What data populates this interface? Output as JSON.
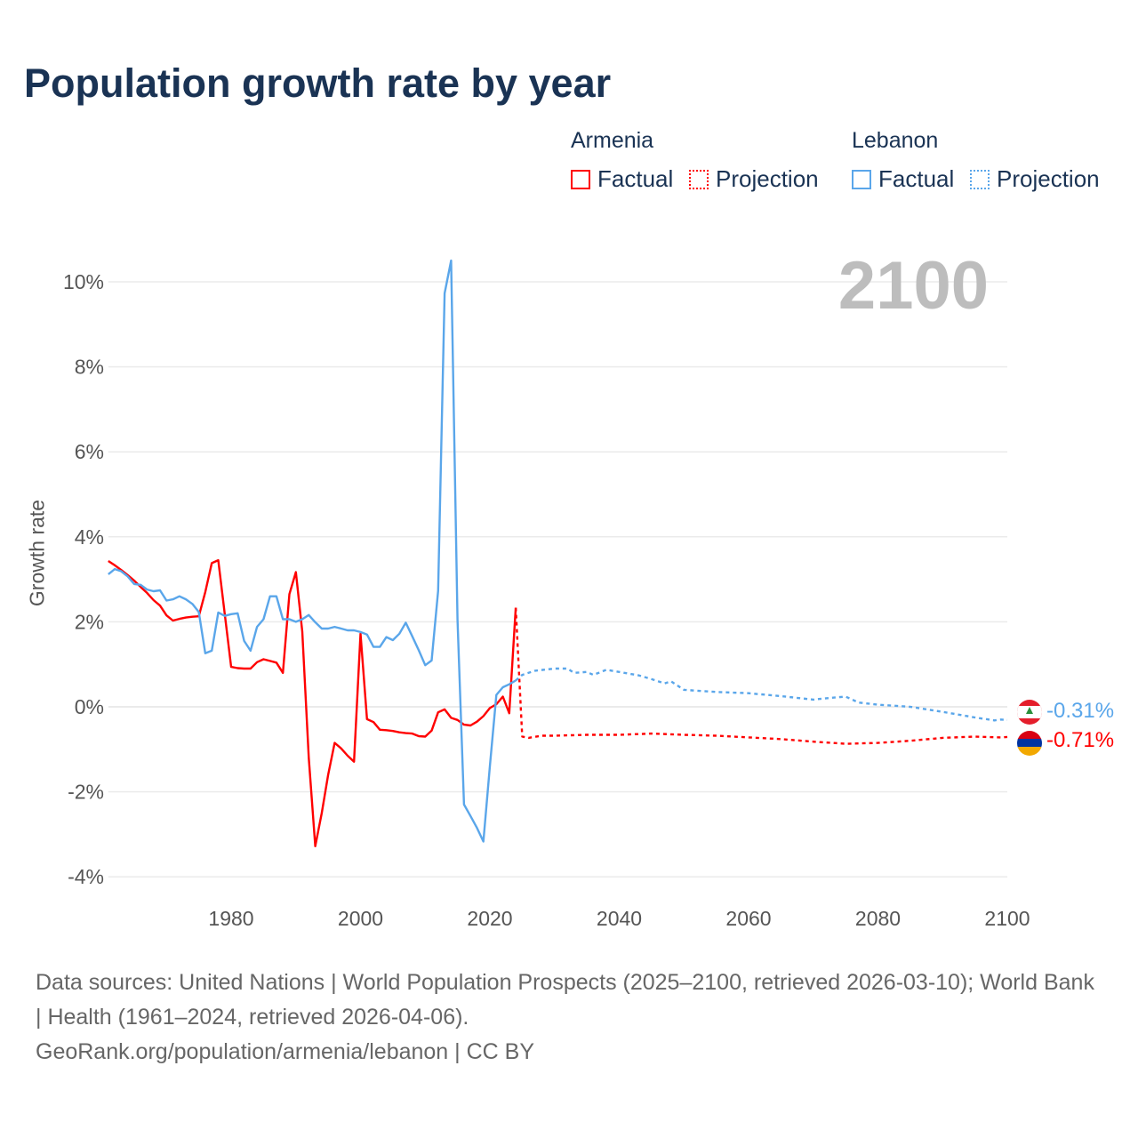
{
  "title": "Population growth rate by year",
  "current_year": "2100",
  "legend": {
    "groups": [
      {
        "name": "Armenia",
        "factual": "Factual",
        "projection": "Projection",
        "color": "#ff0000"
      },
      {
        "name": "Lebanon",
        "factual": "Factual",
        "projection": "Projection",
        "color": "#5aa6ea"
      }
    ]
  },
  "footer": {
    "sources": "Data sources: United Nations | World Population Prospects (2025–2100, retrieved 2026-03-10); World Bank | Health (1961–2024, retrieved 2026-04-06).",
    "credit": "GeoRank.org/population/armenia/lebanon | CC BY"
  },
  "chart_data": {
    "type": "line",
    "title": "Population growth rate by year",
    "xlabel": "",
    "ylabel": "Growth rate",
    "xlim": [
      1961,
      2100
    ],
    "ylim": [
      -4,
      10.8
    ],
    "x_ticks": [
      1980,
      2000,
      2020,
      2040,
      2060,
      2080,
      2100
    ],
    "x_tick_labels": [
      "1980",
      "2000",
      "2020",
      "2040",
      "2060",
      "2080",
      "2100"
    ],
    "y_ticks": [
      -4,
      -2,
      0,
      2,
      4,
      6,
      8,
      10
    ],
    "y_tick_labels": [
      "-4%",
      "-2%",
      "0%",
      "2%",
      "4%",
      "6%",
      "8%",
      "10%"
    ],
    "grid": true,
    "legend_position": "top-right",
    "end_labels": [
      {
        "country": "Lebanon",
        "text": "-0.31%",
        "value": -0.31,
        "color": "#5aa6ea"
      },
      {
        "country": "Armenia",
        "text": "-0.71%",
        "value": -0.71,
        "color": "#ff0000"
      }
    ],
    "series": [
      {
        "name": "Armenia Factual",
        "color": "#ff0000",
        "style": "solid",
        "x": [
          1961,
          1962,
          1963,
          1964,
          1965,
          1966,
          1967,
          1968,
          1969,
          1970,
          1971,
          1972,
          1973,
          1974,
          1975,
          1976,
          1977,
          1978,
          1979,
          1980,
          1981,
          1982,
          1983,
          1984,
          1985,
          1986,
          1987,
          1988,
          1989,
          1990,
          1991,
          1992,
          1993,
          1994,
          1995,
          1996,
          1997,
          1998,
          1999,
          2000,
          2001,
          2002,
          2003,
          2004,
          2005,
          2006,
          2007,
          2008,
          2009,
          2010,
          2011,
          2012,
          2013,
          2014,
          2015,
          2016,
          2017,
          2018,
          2019,
          2020,
          2021,
          2022,
          2023,
          2024
        ],
        "y": [
          3.43,
          3.33,
          3.22,
          3.1,
          2.97,
          2.82,
          2.68,
          2.51,
          2.38,
          2.15,
          2.03,
          2.07,
          2.1,
          2.12,
          2.13,
          2.7,
          3.38,
          3.45,
          2.2,
          0.94,
          0.91,
          0.9,
          0.9,
          1.05,
          1.12,
          1.08,
          1.04,
          0.8,
          2.65,
          3.17,
          1.77,
          -1.2,
          -3.28,
          -2.5,
          -1.6,
          -0.85,
          -0.98,
          -1.15,
          -1.29,
          1.72,
          -0.29,
          -0.36,
          -0.54,
          -0.55,
          -0.57,
          -0.6,
          -0.62,
          -0.63,
          -0.69,
          -0.7,
          -0.56,
          -0.13,
          -0.06,
          -0.26,
          -0.31,
          -0.42,
          -0.44,
          -0.35,
          -0.22,
          -0.03,
          0.06,
          0.24,
          -0.15,
          2.33
        ]
      },
      {
        "name": "Armenia Projection",
        "color": "#ff0000",
        "style": "dotted",
        "x": [
          2024,
          2025,
          2026,
          2028,
          2030,
          2035,
          2040,
          2045,
          2050,
          2055,
          2060,
          2065,
          2070,
          2075,
          2080,
          2085,
          2090,
          2095,
          2099,
          2100
        ],
        "y": [
          2.33,
          -0.7,
          -0.73,
          -0.68,
          -0.68,
          -0.66,
          -0.66,
          -0.63,
          -0.66,
          -0.68,
          -0.72,
          -0.76,
          -0.82,
          -0.87,
          -0.85,
          -0.8,
          -0.73,
          -0.7,
          -0.72,
          -0.71
        ]
      },
      {
        "name": "Lebanon Factual",
        "color": "#5aa6ea",
        "style": "solid",
        "x": [
          1961,
          1962,
          1963,
          1964,
          1965,
          1966,
          1967,
          1968,
          1969,
          1970,
          1971,
          1972,
          1973,
          1974,
          1975,
          1976,
          1977,
          1978,
          1979,
          1980,
          1981,
          1982,
          1983,
          1984,
          1985,
          1986,
          1987,
          1988,
          1989,
          1990,
          1991,
          1992,
          1993,
          1994,
          1995,
          1996,
          1997,
          1998,
          1999,
          2000,
          2001,
          2002,
          2003,
          2004,
          2005,
          2006,
          2007,
          2008,
          2009,
          2010,
          2011,
          2012,
          2013,
          2014,
          2015,
          2016,
          2017,
          2018,
          2019,
          2020,
          2021,
          2022,
          2023,
          2024
        ],
        "y": [
          3.12,
          3.24,
          3.19,
          3.07,
          2.89,
          2.87,
          2.76,
          2.72,
          2.74,
          2.5,
          2.53,
          2.6,
          2.53,
          2.42,
          2.23,
          1.26,
          1.32,
          2.22,
          2.14,
          2.18,
          2.2,
          1.55,
          1.32,
          1.88,
          2.06,
          2.6,
          2.6,
          2.06,
          2.06,
          2.0,
          2.06,
          2.16,
          1.99,
          1.84,
          1.84,
          1.88,
          1.84,
          1.8,
          1.8,
          1.76,
          1.7,
          1.41,
          1.41,
          1.64,
          1.57,
          1.72,
          1.98,
          1.66,
          1.33,
          0.98,
          1.09,
          2.73,
          9.73,
          10.5,
          2.05,
          -2.3,
          -2.57,
          -2.85,
          -3.17,
          -1.4,
          0.28,
          0.46,
          0.53,
          0.62
        ]
      },
      {
        "name": "Lebanon Projection",
        "color": "#5aa6ea",
        "style": "dotted",
        "x": [
          2024,
          2025,
          2027,
          2030,
          2032,
          2033,
          2035,
          2036,
          2038,
          2040,
          2043,
          2045,
          2047,
          2048,
          2050,
          2055,
          2060,
          2065,
          2070,
          2072,
          2075,
          2077,
          2080,
          2085,
          2090,
          2095,
          2098,
          2099,
          2100
        ],
        "y": [
          0.62,
          0.75,
          0.85,
          0.9,
          0.9,
          0.8,
          0.82,
          0.75,
          0.87,
          0.82,
          0.74,
          0.65,
          0.55,
          0.6,
          0.4,
          0.35,
          0.32,
          0.25,
          0.17,
          0.2,
          0.24,
          0.1,
          0.05,
          0.0,
          -0.12,
          -0.25,
          -0.32,
          -0.3,
          -0.31
        ]
      }
    ]
  }
}
